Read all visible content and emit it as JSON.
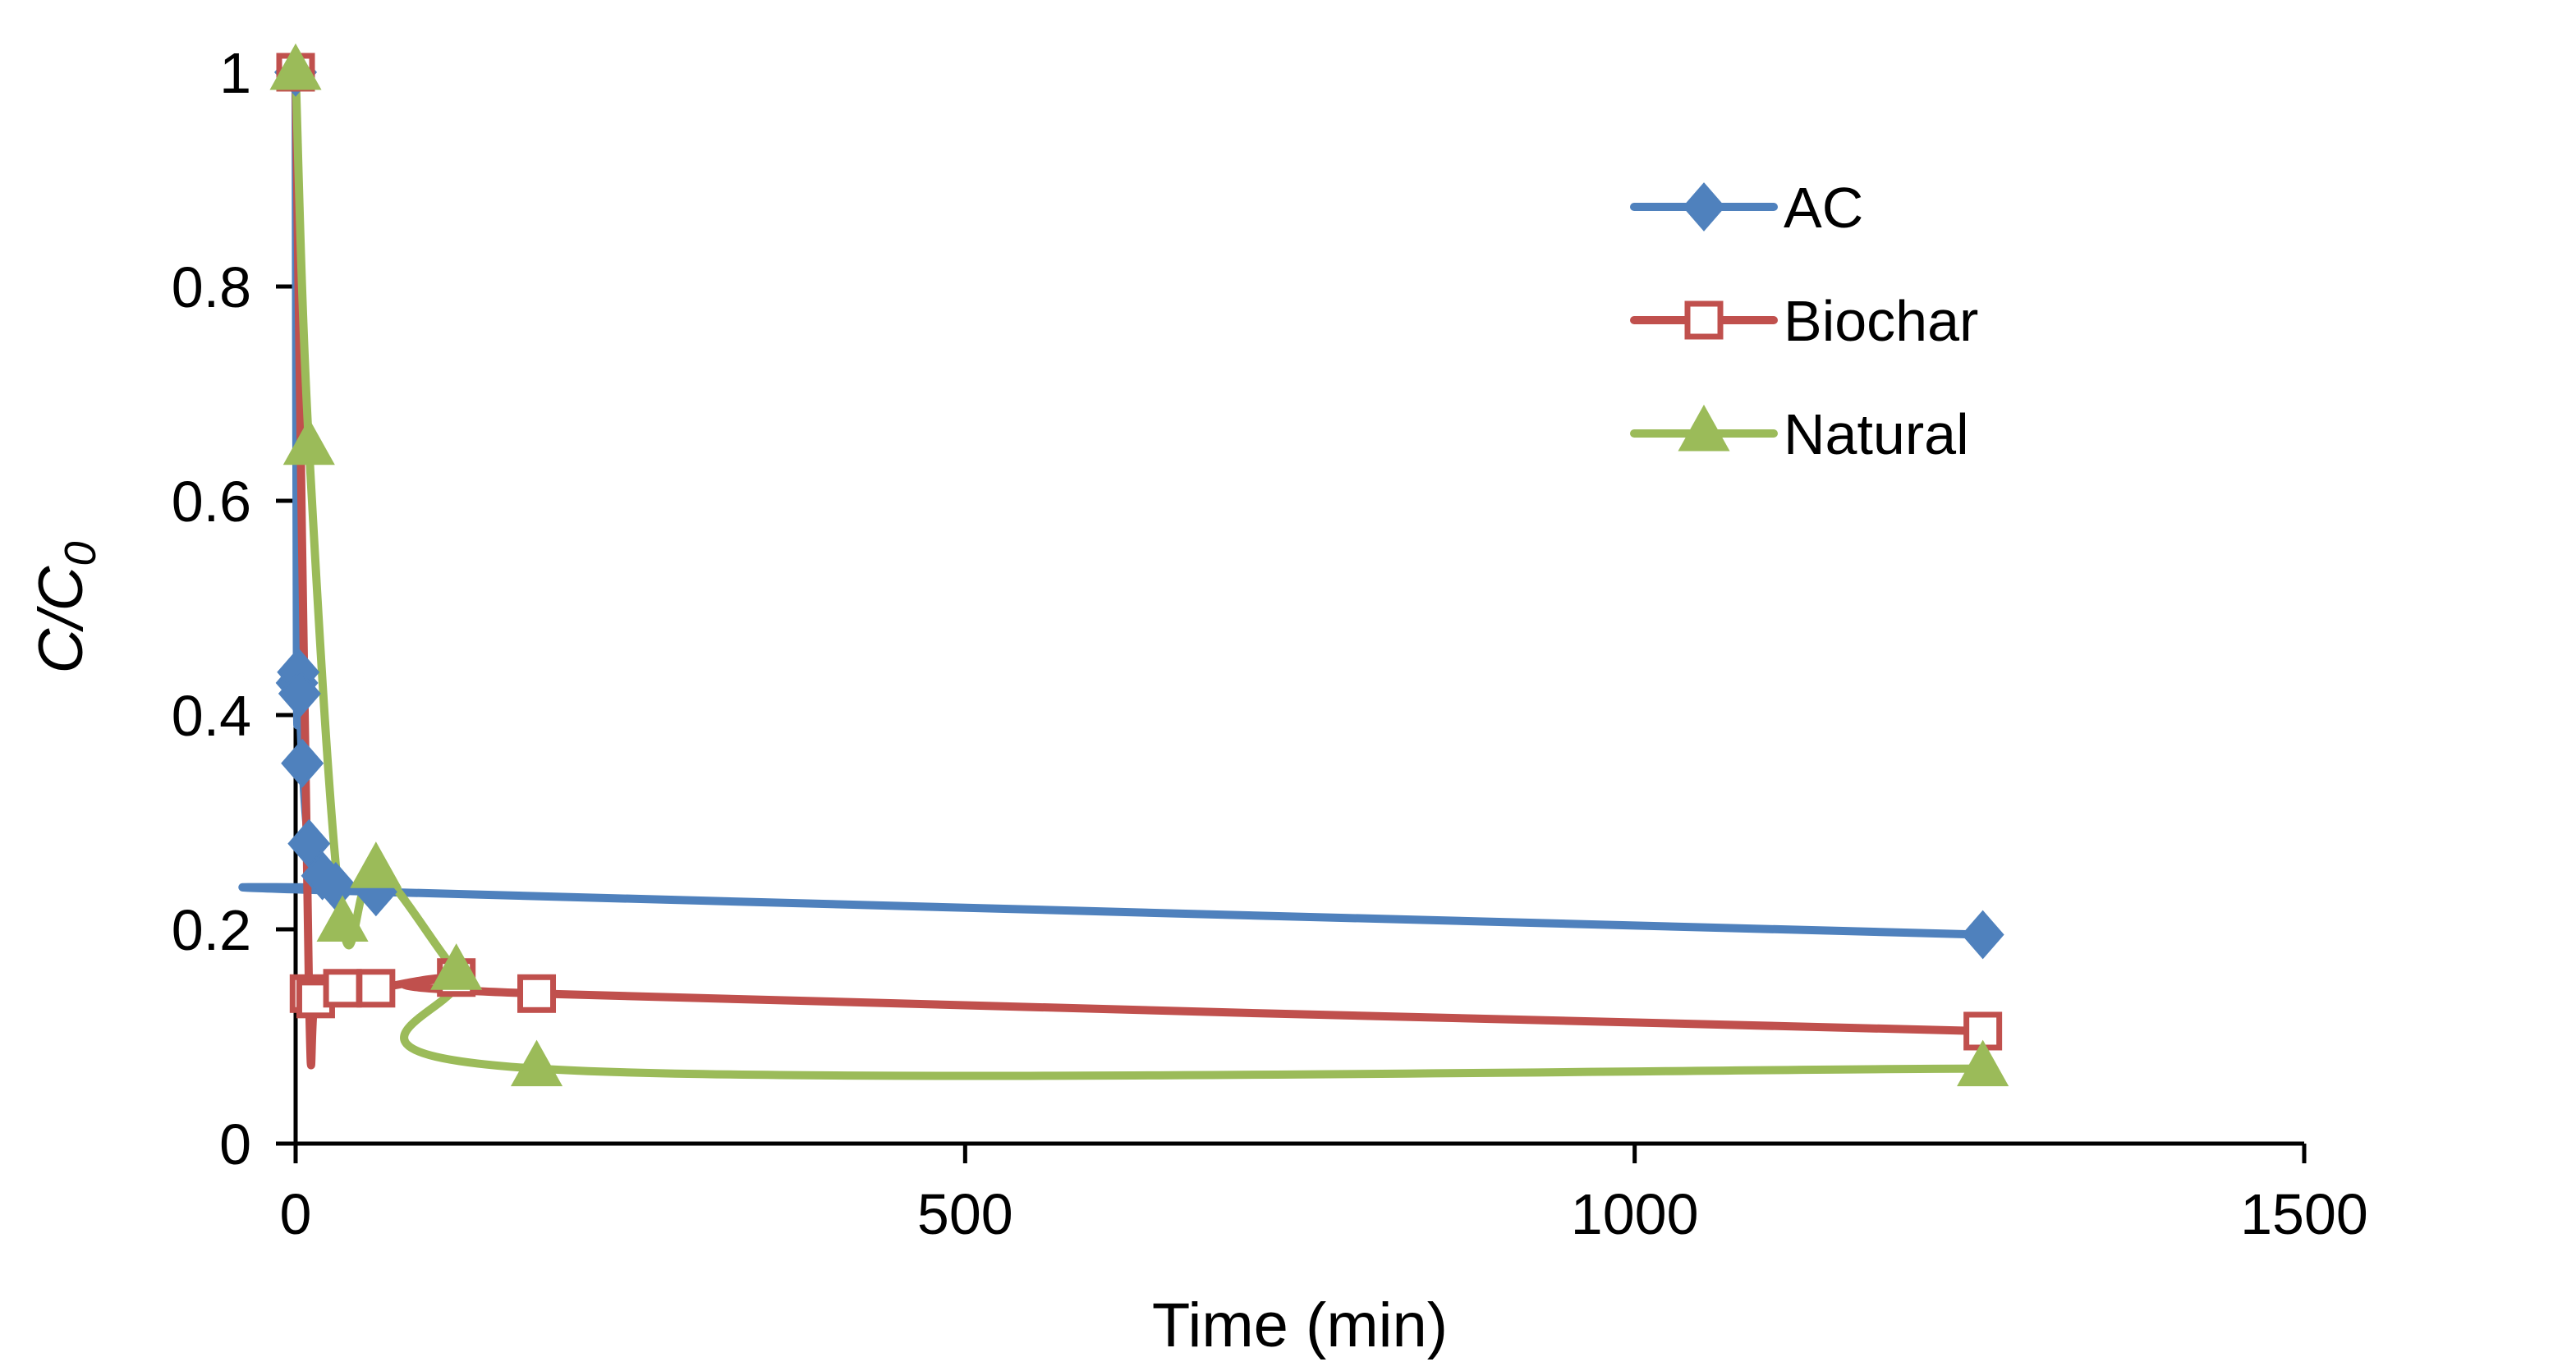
{
  "chart_data": {
    "type": "scatter",
    "title": "",
    "xlabel": "Time (min)",
    "ylabel": {
      "main": "C/C",
      "subscript": "0"
    },
    "xlim": [
      0,
      1500
    ],
    "ylim": [
      0,
      1
    ],
    "x_ticks": [
      0,
      500,
      1000,
      1500
    ],
    "y_ticks": [
      0,
      0.2,
      0.4,
      0.6,
      0.8,
      1
    ],
    "x_tick_labels": [
      "0",
      "500",
      "1000",
      "1500"
    ],
    "y_tick_labels": [
      "0",
      "0.2",
      "0.4",
      "0.6",
      "0.8",
      "1"
    ],
    "grid": false,
    "legend_position": "top-right",
    "series": [
      {
        "name": "AC",
        "color": "#4F81BD",
        "marker": "diamond",
        "filled": true,
        "x": [
          0,
          1,
          2,
          3,
          5,
          10,
          20,
          30,
          60,
          1260
        ],
        "y": [
          1.0,
          0.43,
          0.44,
          0.42,
          0.355,
          0.28,
          0.25,
          0.24,
          0.235,
          0.195
        ]
      },
      {
        "name": "Biochar",
        "color": "#C0504D",
        "marker": "square",
        "filled": false,
        "x": [
          0,
          10,
          15,
          35,
          60,
          120,
          180,
          1260
        ],
        "y": [
          1.0,
          0.14,
          0.135,
          0.145,
          0.145,
          0.155,
          0.14,
          0.105
        ]
      },
      {
        "name": "Natural",
        "color": "#9BBB59",
        "marker": "triangle",
        "filled": true,
        "x": [
          0,
          10,
          35,
          60,
          120,
          180,
          1260
        ],
        "y": [
          1.0,
          0.65,
          0.205,
          0.255,
          0.16,
          0.07,
          0.07
        ]
      }
    ]
  }
}
